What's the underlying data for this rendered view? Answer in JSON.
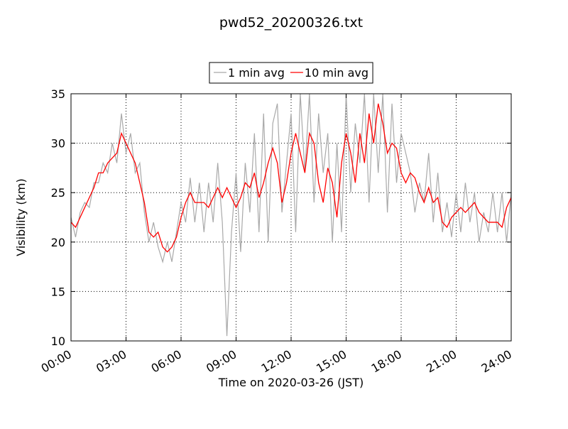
{
  "chart_data": {
    "type": "line",
    "title": "pwd52_20200326.txt",
    "x_label": "Time on 2020-03-26 (JST)",
    "y_label": "Visibility (km)",
    "x": [
      0,
      0.25,
      0.5,
      0.75,
      1,
      1.25,
      1.5,
      1.75,
      2,
      2.25,
      2.5,
      2.75,
      3,
      3.25,
      3.5,
      3.75,
      4,
      4.25,
      4.5,
      4.75,
      5,
      5.25,
      5.5,
      5.75,
      6,
      6.25,
      6.5,
      6.75,
      7,
      7.25,
      7.5,
      7.75,
      8,
      8.25,
      8.5,
      8.75,
      9,
      9.25,
      9.5,
      9.75,
      10,
      10.25,
      10.5,
      10.75,
      11,
      11.25,
      11.5,
      11.75,
      12,
      12.25,
      12.5,
      12.75,
      13,
      13.25,
      13.5,
      13.75,
      14,
      14.25,
      14.5,
      14.75,
      15,
      15.25,
      15.5,
      15.75,
      16,
      16.25,
      16.5,
      16.75,
      17,
      17.25,
      17.5,
      17.75,
      18,
      18.25,
      18.5,
      18.75,
      19,
      19.25,
      19.5,
      19.75,
      20,
      20.25,
      20.5,
      20.75,
      21,
      21.25,
      21.5,
      21.75,
      22,
      22.25,
      22.5,
      22.75,
      23,
      23.25,
      23.5,
      23.75,
      24
    ],
    "series": [
      {
        "name": "1 min avg",
        "color": "#a9a9a9",
        "values": [
          22.5,
          20.5,
          23,
          24,
          23.5,
          26,
          26,
          28,
          27,
          30,
          28,
          33,
          29,
          31,
          27,
          28,
          23,
          20,
          22,
          19.5,
          18,
          20,
          18,
          21,
          24,
          22,
          26.5,
          22,
          26,
          21,
          26,
          22,
          28,
          22,
          10.5,
          21,
          27,
          19,
          28,
          23,
          31,
          21,
          33,
          20,
          32,
          34,
          23,
          28,
          33,
          21,
          35,
          27,
          35,
          24,
          33,
          27,
          31,
          20,
          30,
          21,
          35,
          25,
          32,
          28,
          35,
          24,
          35,
          27,
          35,
          23,
          34,
          26,
          31,
          29,
          27,
          23,
          26,
          24,
          29,
          22,
          27,
          21,
          24,
          20.5,
          25,
          21,
          26,
          22,
          25,
          20,
          23,
          21,
          25,
          21,
          25,
          20,
          25
        ]
      },
      {
        "name": "10 min avg",
        "color": "#ff0000",
        "values": [
          22,
          21.5,
          22.5,
          23.5,
          24.5,
          25.5,
          27,
          27,
          28,
          28.5,
          29,
          31,
          30,
          29,
          28,
          26,
          24,
          21,
          20.5,
          21,
          19.5,
          19,
          19.5,
          20.5,
          22.5,
          24,
          25,
          24,
          24,
          24,
          23.5,
          24.5,
          25.5,
          24.5,
          25.5,
          24.5,
          23.5,
          24.5,
          26,
          25.5,
          27,
          24.5,
          26,
          28,
          29.5,
          28,
          24,
          26,
          29,
          31,
          29,
          27,
          31,
          30,
          26,
          24,
          27.5,
          26,
          22.5,
          28,
          31,
          29,
          26,
          31,
          28,
          33,
          30,
          34,
          32,
          29,
          30,
          29.5,
          27,
          26,
          27,
          26.5,
          25,
          24,
          25.5,
          24,
          24.5,
          22,
          21.5,
          22.5,
          23,
          23.5,
          23,
          23.5,
          24,
          23,
          22.5,
          22,
          22,
          22,
          21.5,
          23.5,
          24.5
        ]
      }
    ],
    "xlim": [
      0,
      24
    ],
    "xticks": [
      {
        "value": 0,
        "label": "00:00"
      },
      {
        "value": 3,
        "label": "03:00"
      },
      {
        "value": 6,
        "label": "06:00"
      },
      {
        "value": 9,
        "label": "09:00"
      },
      {
        "value": 12,
        "label": "12:00"
      },
      {
        "value": 15,
        "label": "15:00"
      },
      {
        "value": 18,
        "label": "18:00"
      },
      {
        "value": 21,
        "label": "21:00"
      },
      {
        "value": 24,
        "label": "24:00"
      }
    ],
    "ylim": [
      10,
      35
    ],
    "yticks": [
      10,
      15,
      20,
      25,
      30,
      35
    ],
    "grid": true,
    "legend": "upper center"
  }
}
